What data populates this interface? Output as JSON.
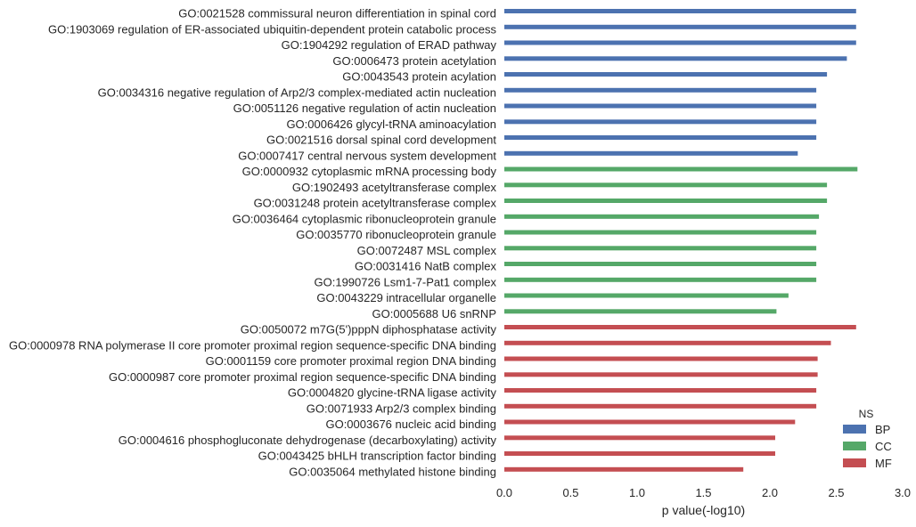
{
  "chart_data": {
    "type": "bar",
    "orientation": "horizontal",
    "xlabel": "p value(-log10)",
    "ylabel": "",
    "xlim": [
      0.0,
      3.0
    ],
    "xticks": [
      "0.0",
      "0.5",
      "1.0",
      "1.5",
      "2.0",
      "2.5",
      "3.0"
    ],
    "grid": false,
    "legend": {
      "title": "NS",
      "placement": "lower-right",
      "entries": [
        {
          "name": "BP",
          "color": "#4c72b0"
        },
        {
          "name": "CC",
          "color": "#55a868"
        },
        {
          "name": "MF",
          "color": "#c44e52"
        }
      ]
    },
    "categories": [
      {
        "label": "GO:0021528 commissural neuron differentiation in spinal cord",
        "ns": "BP",
        "value": 2.65
      },
      {
        "label": "GO:1903069 regulation of ER-associated ubiquitin-dependent protein catabolic process",
        "ns": "BP",
        "value": 2.65
      },
      {
        "label": "GO:1904292 regulation of ERAD pathway",
        "ns": "BP",
        "value": 2.65
      },
      {
        "label": "GO:0006473 protein acetylation",
        "ns": "BP",
        "value": 2.58
      },
      {
        "label": "GO:0043543 protein acylation",
        "ns": "BP",
        "value": 2.43
      },
      {
        "label": "GO:0034316 negative regulation of Arp2/3 complex-mediated actin nucleation",
        "ns": "BP",
        "value": 2.35
      },
      {
        "label": "GO:0051126 negative regulation of actin nucleation",
        "ns": "BP",
        "value": 2.35
      },
      {
        "label": "GO:0006426 glycyl-tRNA aminoacylation",
        "ns": "BP",
        "value": 2.35
      },
      {
        "label": "GO:0021516 dorsal spinal cord development",
        "ns": "BP",
        "value": 2.35
      },
      {
        "label": "GO:0007417 central nervous system development",
        "ns": "BP",
        "value": 2.21
      },
      {
        "label": "GO:0000932 cytoplasmic mRNA processing body",
        "ns": "CC",
        "value": 2.66
      },
      {
        "label": "GO:1902493 acetyltransferase complex",
        "ns": "CC",
        "value": 2.43
      },
      {
        "label": "GO:0031248 protein acetyltransferase complex",
        "ns": "CC",
        "value": 2.43
      },
      {
        "label": "GO:0036464 cytoplasmic ribonucleoprotein granule",
        "ns": "CC",
        "value": 2.37
      },
      {
        "label": "GO:0035770 ribonucleoprotein granule",
        "ns": "CC",
        "value": 2.35
      },
      {
        "label": "GO:0072487 MSL complex",
        "ns": "CC",
        "value": 2.35
      },
      {
        "label": "GO:0031416 NatB complex",
        "ns": "CC",
        "value": 2.35
      },
      {
        "label": "GO:1990726 Lsm1-7-Pat1 complex",
        "ns": "CC",
        "value": 2.35
      },
      {
        "label": "GO:0043229 intracellular organelle",
        "ns": "CC",
        "value": 2.14
      },
      {
        "label": "GO:0005688 U6 snRNP",
        "ns": "CC",
        "value": 2.05
      },
      {
        "label": "GO:0050072 m7G(5')pppN diphosphatase activity",
        "ns": "MF",
        "value": 2.65
      },
      {
        "label": "GO:0000978 RNA polymerase II core promoter proximal region sequence-specific DNA binding",
        "ns": "MF",
        "value": 2.46
      },
      {
        "label": "GO:0001159 core promoter proximal region DNA binding",
        "ns": "MF",
        "value": 2.36
      },
      {
        "label": "GO:0000987 core promoter proximal region sequence-specific DNA binding",
        "ns": "MF",
        "value": 2.36
      },
      {
        "label": "GO:0004820 glycine-tRNA ligase activity",
        "ns": "MF",
        "value": 2.35
      },
      {
        "label": "GO:0071933 Arp2/3 complex binding",
        "ns": "MF",
        "value": 2.35
      },
      {
        "label": "GO:0003676 nucleic acid binding",
        "ns": "MF",
        "value": 2.19
      },
      {
        "label": "GO:0004616 phosphogluconate dehydrogenase (decarboxylating) activity",
        "ns": "MF",
        "value": 2.04
      },
      {
        "label": "GO:0043425 bHLH transcription factor binding",
        "ns": "MF",
        "value": 2.04
      },
      {
        "label": "GO:0035064 methylated histone binding",
        "ns": "MF",
        "value": 1.8
      }
    ]
  }
}
